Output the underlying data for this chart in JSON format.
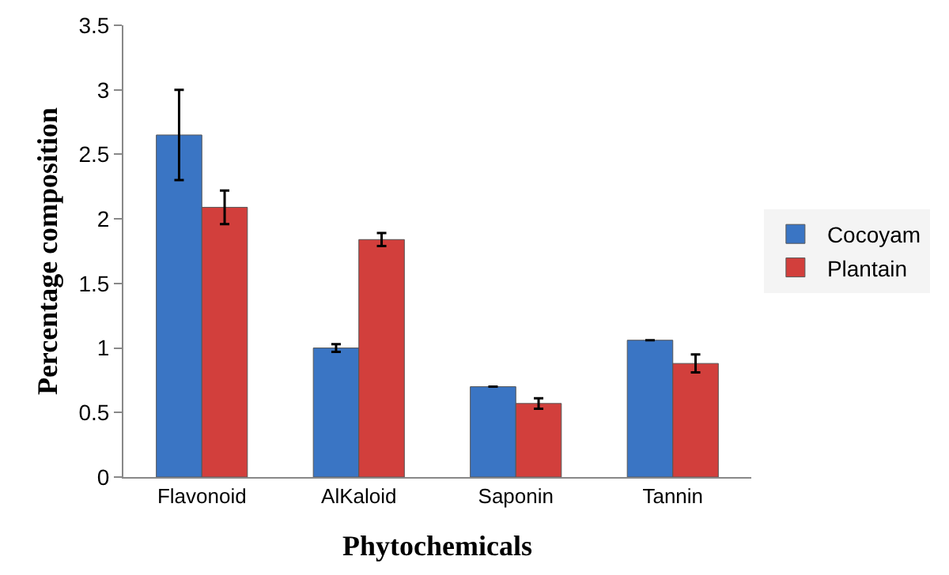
{
  "chart_data": {
    "type": "bar",
    "xlabel": "Phytochemicals",
    "ylabel": "Percentage composition",
    "categories": [
      "Flavonoid",
      "AlKaloid",
      "Saponin",
      "Tannin"
    ],
    "series": [
      {
        "name": "Cocoyam",
        "color": "#3a75c4",
        "values": [
          2.65,
          1.0,
          0.7,
          1.06
        ],
        "errors": [
          0.35,
          0.03,
          null,
          null
        ]
      },
      {
        "name": "Plantain",
        "color": "#d23f3c",
        "values": [
          2.09,
          1.84,
          0.57,
          0.88
        ],
        "errors": [
          0.13,
          0.05,
          0.04,
          0.07
        ]
      }
    ],
    "ylim": [
      0,
      3.5
    ],
    "yticks": [
      0,
      0.5,
      1,
      1.5,
      2,
      2.5,
      3,
      3.5
    ],
    "grid": false,
    "legend": "right"
  }
}
